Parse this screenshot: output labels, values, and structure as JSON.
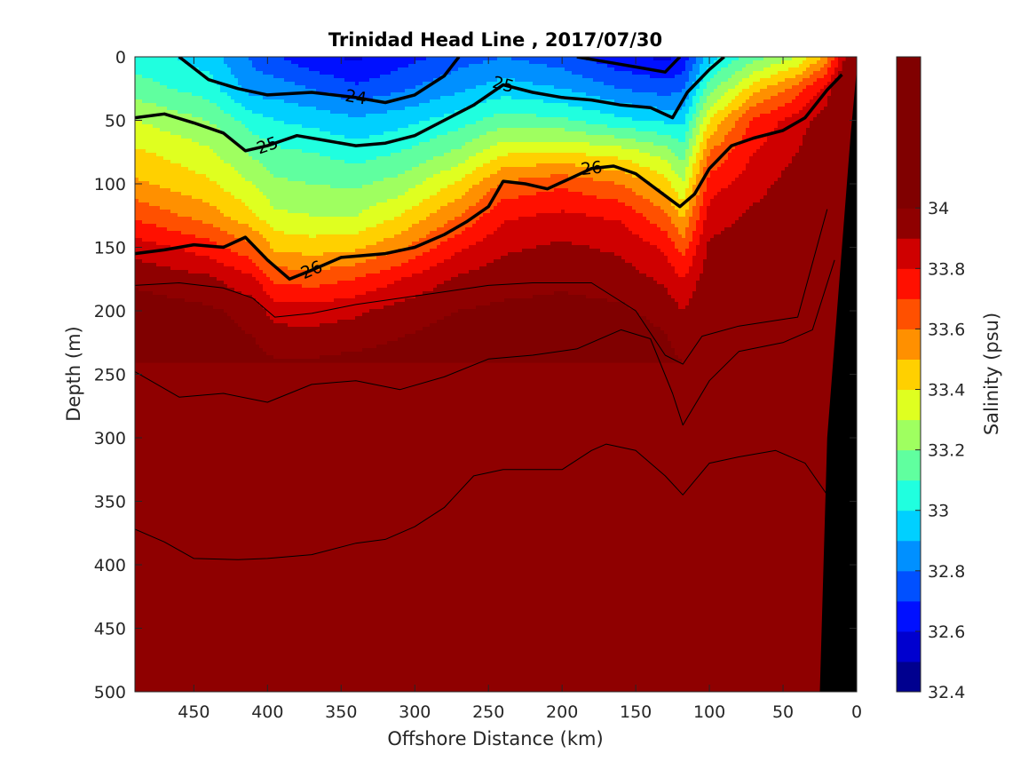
{
  "chart_data": {
    "type": "contour",
    "title": "Trinidad Head Line , 2017/07/30",
    "xlabel": "Offshore Distance (km)",
    "ylabel": "Depth (m)",
    "xlim": [
      490,
      0
    ],
    "ylim": [
      0,
      500
    ],
    "x_reversed": true,
    "y_reversed": true,
    "x_ticks": [
      "450",
      "400",
      "350",
      "300",
      "250",
      "200",
      "150",
      "100",
      "50",
      "0"
    ],
    "x_tick_values": [
      450,
      400,
      350,
      300,
      250,
      200,
      150,
      100,
      50,
      0
    ],
    "y_ticks": [
      "0",
      "50",
      "100",
      "150",
      "200",
      "250",
      "300",
      "350",
      "400",
      "450",
      "500"
    ],
    "y_tick_values": [
      0,
      50,
      100,
      150,
      200,
      250,
      300,
      350,
      400,
      450,
      500
    ],
    "colorbar": {
      "label": "Salinity (psu)",
      "range": [
        32.4,
        34.5
      ],
      "tick_labels": [
        "32.4",
        "32.6",
        "32.8",
        "33",
        "33.2",
        "33.4",
        "33.6",
        "33.8",
        "34"
      ],
      "tick_values": [
        32.4,
        32.6,
        32.8,
        33.0,
        33.2,
        33.4,
        33.6,
        33.8,
        34.0
      ],
      "levels": [
        32.4,
        32.5,
        32.6,
        32.7,
        32.8,
        32.9,
        33.0,
        33.1,
        33.2,
        33.3,
        33.4,
        33.5,
        33.6,
        33.7,
        33.8,
        33.9,
        34.0,
        34.1,
        34.2,
        34.3,
        34.4,
        34.5
      ],
      "colors": [
        "#00008f",
        "#0000cf",
        "#0010ff",
        "#0050ff",
        "#0090ff",
        "#00d0ff",
        "#20ffdf",
        "#60ff9f",
        "#9fff60",
        "#dfff20",
        "#ffd000",
        "#ff9000",
        "#ff5000",
        "#ff1000",
        "#cf0000",
        "#8f0000",
        "#800000",
        "#800000",
        "#800000",
        "#800000",
        "#800000"
      ]
    },
    "salinity_field": {
      "x_km": [
        490,
        440,
        410,
        395,
        370,
        340,
        310,
        270,
        240,
        200,
        160,
        130,
        118,
        100,
        70,
        40,
        20,
        8
      ],
      "depths_m": [
        0,
        25,
        50,
        75,
        100,
        125,
        150,
        175,
        200,
        250,
        300,
        350,
        400,
        450,
        500
      ],
      "values": [
        [
          33.05,
          32.95,
          32.78,
          32.72,
          32.62,
          32.58,
          32.65,
          32.75,
          32.8,
          32.74,
          32.62,
          32.58,
          32.62,
          32.95,
          33.15,
          33.3,
          33.55,
          33.9
        ],
        [
          33.15,
          33.05,
          32.85,
          32.85,
          32.8,
          32.72,
          32.78,
          32.88,
          32.95,
          32.9,
          32.8,
          32.75,
          32.78,
          33.15,
          33.45,
          33.65,
          33.85,
          34.1
        ],
        [
          33.3,
          33.2,
          33.05,
          33.0,
          32.97,
          32.92,
          32.96,
          33.05,
          33.15,
          33.12,
          33.02,
          32.98,
          32.97,
          33.4,
          33.72,
          33.85,
          33.95,
          34.15
        ],
        [
          33.42,
          33.32,
          33.18,
          33.12,
          33.1,
          33.05,
          33.1,
          33.22,
          33.38,
          33.4,
          33.35,
          33.25,
          33.15,
          33.6,
          33.8,
          33.9,
          34.02,
          34.2
        ],
        [
          33.52,
          33.42,
          33.3,
          33.22,
          33.2,
          33.18,
          33.24,
          33.42,
          33.62,
          33.68,
          33.6,
          33.45,
          33.3,
          33.75,
          33.86,
          33.95,
          34.05,
          34.2
        ],
        [
          33.68,
          33.55,
          33.42,
          33.32,
          33.3,
          33.3,
          33.4,
          33.6,
          33.78,
          33.82,
          33.78,
          33.62,
          33.48,
          33.85,
          33.92,
          33.98,
          34.06,
          34.2
        ],
        [
          33.85,
          33.75,
          33.62,
          33.48,
          33.45,
          33.48,
          33.58,
          33.78,
          33.88,
          33.92,
          33.88,
          33.78,
          33.65,
          33.92,
          33.96,
          34.0,
          34.08,
          34.22
        ],
        [
          33.98,
          33.92,
          33.82,
          33.68,
          33.65,
          33.7,
          33.8,
          33.92,
          33.96,
          33.98,
          33.95,
          33.88,
          33.8,
          33.97,
          33.99,
          34.02,
          34.1,
          34.25
        ],
        [
          34.05,
          34.02,
          33.96,
          33.86,
          33.85,
          33.88,
          33.94,
          34.0,
          34.02,
          34.03,
          34.02,
          33.96,
          33.9,
          34.01,
          34.02,
          34.04,
          34.12,
          34.3
        ],
        [
          34.1,
          34.08,
          34.06,
          34.05,
          34.05,
          34.07,
          34.08,
          34.12,
          34.18,
          34.18,
          34.15,
          34.07,
          34.02,
          34.08,
          34.07,
          34.08,
          34.15,
          34.35
        ],
        [
          34.16,
          34.15,
          34.13,
          34.12,
          34.12,
          34.14,
          34.16,
          34.26,
          34.3,
          34.24,
          34.22,
          34.16,
          34.12,
          34.16,
          34.18,
          34.17,
          34.2,
          34.4
        ],
        [
          34.22,
          34.21,
          34.2,
          34.19,
          34.19,
          34.2,
          34.22,
          34.32,
          34.35,
          34.33,
          34.31,
          34.27,
          34.23,
          34.3,
          34.3,
          34.28,
          34.28,
          34.42
        ],
        [
          34.28,
          34.27,
          34.26,
          34.25,
          34.25,
          34.27,
          34.3,
          34.33,
          34.36,
          34.37,
          34.37,
          34.35,
          34.32,
          34.35,
          34.34,
          34.32,
          34.32,
          34.44
        ],
        [
          34.33,
          34.31,
          34.3,
          34.3,
          34.3,
          34.33,
          34.34,
          34.35,
          34.38,
          34.41,
          34.42,
          34.4,
          34.37,
          34.4,
          34.38,
          34.36,
          34.36,
          34.45
        ],
        [
          34.36,
          34.35,
          34.34,
          34.34,
          34.34,
          34.37,
          34.38,
          34.4,
          34.41,
          34.43,
          34.45,
          34.43,
          34.4,
          34.43,
          34.41,
          34.39,
          34.4,
          34.46
        ]
      ]
    },
    "density_contours": [
      {
        "label": "24",
        "emphasis": true,
        "x_km": [
          490,
          460,
          440,
          420,
          400,
          370,
          340,
          320,
          300,
          280,
          270,
          260,
          240,
          210,
          190,
          170,
          150,
          130,
          120
        ],
        "depth_m": [
          null,
          0,
          18,
          25,
          30,
          28,
          32,
          36,
          30,
          15,
          0,
          null,
          null,
          null,
          0,
          4,
          8,
          12,
          0
        ]
      },
      {
        "label": "25",
        "emphasis": true,
        "x_km": [
          490,
          470,
          450,
          430,
          415,
          400,
          380,
          360,
          340,
          320,
          300,
          280,
          260,
          240,
          220,
          200,
          180,
          160,
          140,
          125,
          115,
          100,
          90
        ],
        "depth_m": [
          48,
          45,
          52,
          60,
          74,
          70,
          62,
          66,
          70,
          68,
          62,
          50,
          38,
          22,
          28,
          32,
          34,
          38,
          40,
          48,
          28,
          10,
          0
        ]
      },
      {
        "label": "26",
        "emphasis": true,
        "x_km": [
          490,
          470,
          450,
          430,
          415,
          400,
          385,
          370,
          350,
          320,
          300,
          280,
          265,
          250,
          240,
          225,
          210,
          195,
          180,
          165,
          150,
          135,
          120,
          110,
          100,
          85,
          70,
          50,
          35,
          20,
          10
        ],
        "depth_m": [
          155,
          152,
          148,
          150,
          142,
          160,
          175,
          168,
          158,
          155,
          150,
          140,
          130,
          118,
          98,
          100,
          104,
          96,
          88,
          86,
          92,
          105,
          118,
          108,
          88,
          70,
          64,
          58,
          48,
          26,
          14
        ]
      },
      {
        "label": "",
        "emphasis": false,
        "x_km": [
          490,
          460,
          430,
          410,
          395,
          370,
          340,
          310,
          280,
          250,
          220,
          180,
          150,
          130,
          118,
          105,
          80,
          40,
          20
        ],
        "depth_m": [
          180,
          178,
          182,
          190,
          205,
          202,
          195,
          190,
          185,
          180,
          178,
          178,
          200,
          235,
          242,
          220,
          212,
          205,
          120
        ]
      },
      {
        "label": "",
        "emphasis": false,
        "x_km": [
          490,
          460,
          430,
          400,
          370,
          340,
          310,
          280,
          250,
          220,
          190,
          160,
          140,
          125,
          118,
          100,
          80,
          50,
          30,
          15
        ],
        "depth_m": [
          248,
          268,
          265,
          272,
          258,
          255,
          262,
          252,
          238,
          235,
          230,
          215,
          222,
          265,
          290,
          255,
          232,
          225,
          215,
          160
        ]
      },
      {
        "label": "",
        "emphasis": false,
        "x_km": [
          490,
          470,
          450,
          420,
          400,
          370,
          340,
          320,
          300,
          280,
          260,
          240,
          200,
          180,
          170,
          150,
          130,
          118,
          100,
          80,
          55,
          35,
          20
        ],
        "depth_m": [
          372,
          382,
          395,
          396,
          395,
          392,
          383,
          380,
          370,
          355,
          330,
          325,
          325,
          310,
          305,
          310,
          330,
          345,
          320,
          315,
          310,
          320,
          345
        ]
      }
    ],
    "shelf_mask": {
      "x_km": [
        25,
        20,
        10,
        4,
        0,
        0
      ],
      "depth_m": [
        500,
        300,
        150,
        60,
        10,
        500
      ]
    }
  }
}
